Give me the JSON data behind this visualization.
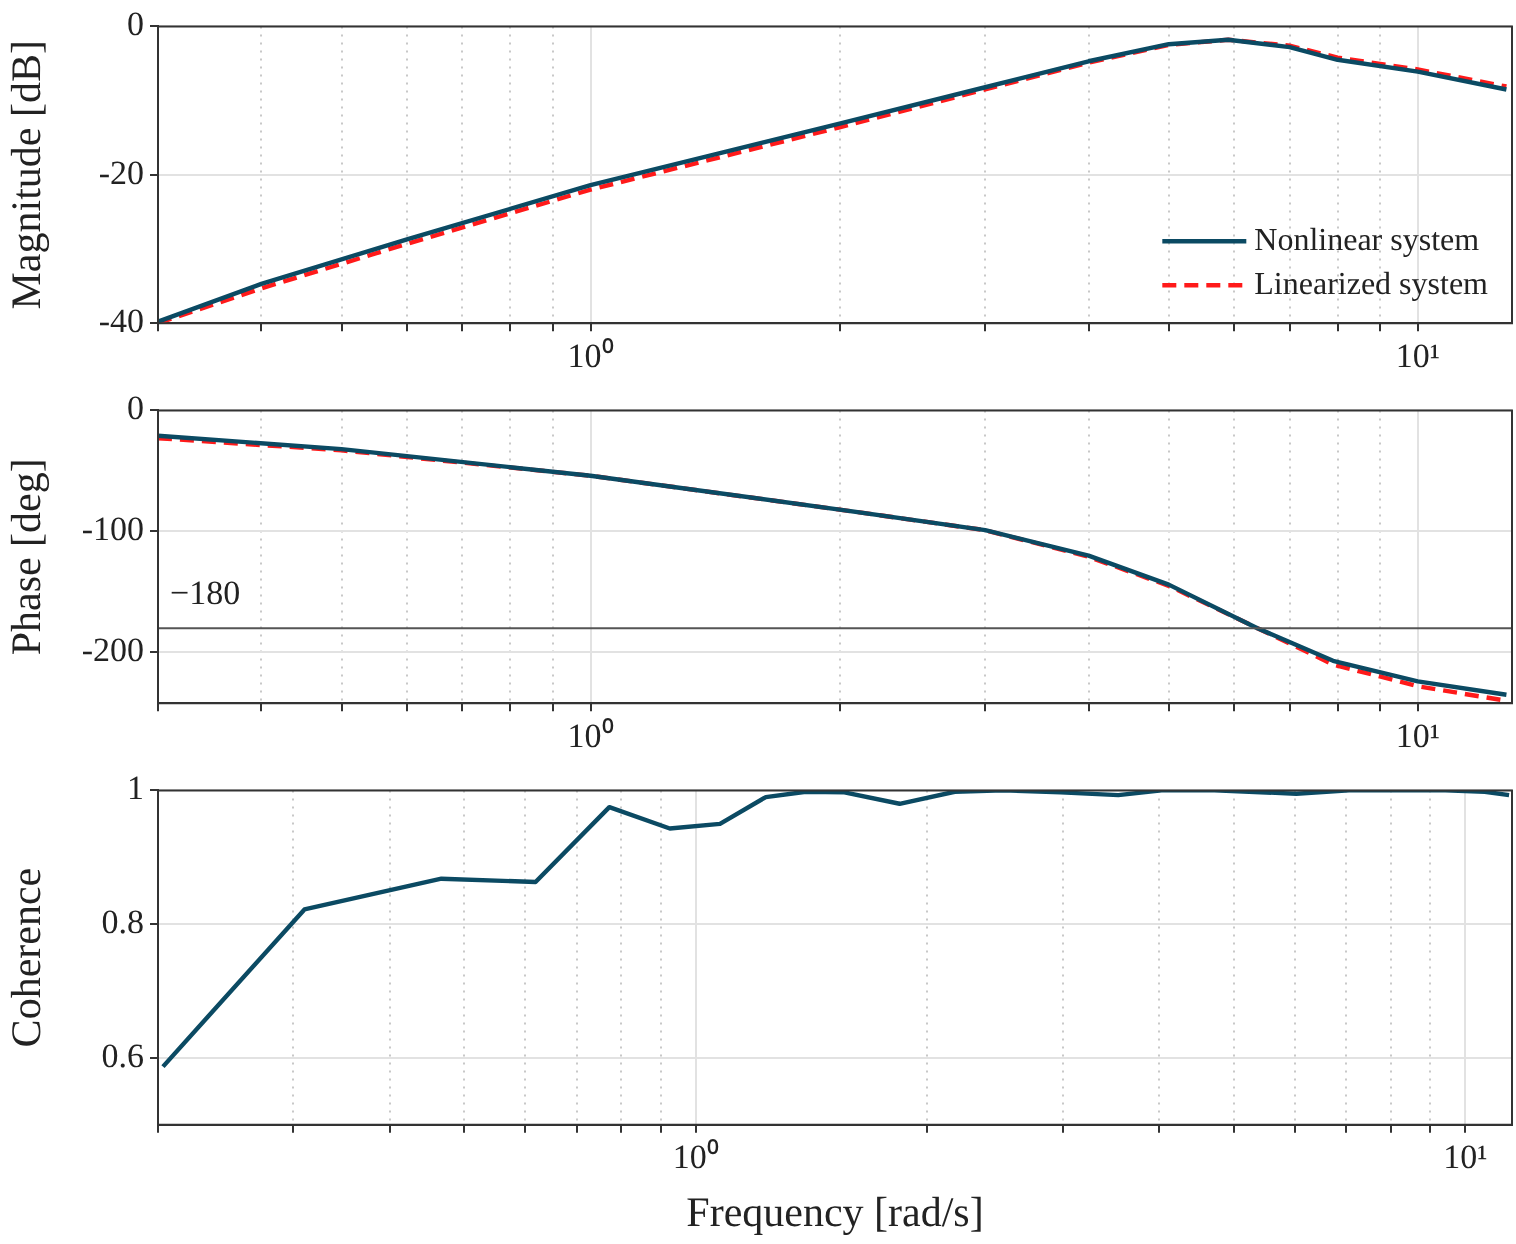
{
  "chart_data": [
    {
      "type": "line",
      "ylabel": "Magnitude [dB]",
      "log": "x",
      "grid": true,
      "legend": "bottom right",
      "x": [
        0.3,
        0.4,
        0.6,
        1,
        2,
        3,
        4,
        5,
        5.9,
        7,
        8,
        10,
        12.8
      ],
      "series": [
        {
          "name": "Nonlinear system",
          "color": "#0b4a63",
          "line_style": "solid",
          "values": [
            -39.8,
            -34.7,
            -28.7,
            -21.4,
            -13.1,
            -8.2,
            -4.7,
            -2.4,
            -1.8,
            -2.8,
            -4.5,
            -6.1,
            -8.5
          ]
        },
        {
          "name": "Linearized system",
          "color": "#ff1a1a",
          "line_style": "dashed",
          "values": [
            -40,
            -35.3,
            -29.3,
            -22,
            -13.6,
            -8.5,
            -4.9,
            -2.5,
            -1.8,
            -2.6,
            -4.2,
            -5.8,
            -8.1
          ]
        }
      ],
      "xlim": [
        0.3,
        13
      ],
      "xticks": [
        {
          "value": 0.3,
          "label": null
        },
        {
          "value": 0.4,
          "label": null
        },
        {
          "value": 0.5,
          "label": null
        },
        {
          "value": 0.6,
          "label": null
        },
        {
          "value": 0.7,
          "label": null
        },
        {
          "value": 0.8,
          "label": null
        },
        {
          "value": 0.9,
          "label": null
        },
        {
          "value": 1,
          "label": "10⁰"
        },
        {
          "value": 2,
          "label": null
        },
        {
          "value": 3,
          "label": null
        },
        {
          "value": 4,
          "label": null
        },
        {
          "value": 5,
          "label": null
        },
        {
          "value": 6,
          "label": null
        },
        {
          "value": 7,
          "label": null
        },
        {
          "value": 8,
          "label": null
        },
        {
          "value": 9,
          "label": null
        },
        {
          "value": 10,
          "label": "10¹"
        }
      ],
      "ylim": [
        -40,
        0
      ],
      "yticks": [
        -40,
        -20,
        0
      ]
    },
    {
      "type": "line",
      "ylabel": "Phase [deg]",
      "log": "x",
      "grid": true,
      "x": [
        0.3,
        0.5,
        1,
        2,
        3,
        4,
        5,
        6.4,
        7.9,
        10,
        12.8
      ],
      "series": [
        {
          "color": "#0b4a63",
          "line_style": "solid",
          "values": [
            -21,
            -32,
            -54,
            -82,
            -99,
            -120,
            -144,
            -180,
            -207,
            -224,
            -235
          ]
        },
        {
          "color": "#ff1a1a",
          "line_style": "dashed",
          "values": [
            -23,
            -33,
            -54,
            -82,
            -99,
            -121,
            -145,
            -180,
            -210,
            -228,
            -240
          ]
        }
      ],
      "ref_lines": [
        {
          "axis": "y",
          "value": -180,
          "label": "−180",
          "color": "#555555"
        }
      ],
      "xlim": [
        0.3,
        13
      ],
      "xticks": [
        {
          "value": 0.3,
          "label": null
        },
        {
          "value": 0.4,
          "label": null
        },
        {
          "value": 0.5,
          "label": null
        },
        {
          "value": 0.6,
          "label": null
        },
        {
          "value": 0.7,
          "label": null
        },
        {
          "value": 0.8,
          "label": null
        },
        {
          "value": 0.9,
          "label": null
        },
        {
          "value": 1,
          "label": "10⁰"
        },
        {
          "value": 2,
          "label": null
        },
        {
          "value": 3,
          "label": null
        },
        {
          "value": 4,
          "label": null
        },
        {
          "value": 5,
          "label": null
        },
        {
          "value": 6,
          "label": null
        },
        {
          "value": 7,
          "label": null
        },
        {
          "value": 8,
          "label": null
        },
        {
          "value": 9,
          "label": null
        },
        {
          "value": 10,
          "label": "10¹"
        }
      ],
      "ylim": [
        -242,
        0
      ],
      "yticks": [
        -200,
        -100,
        0
      ]
    },
    {
      "type": "line",
      "xlabel": "Frequency [rad/s]",
      "ylabel": "Coherence",
      "log": "x",
      "grid": true,
      "x": [
        0.203,
        0.31,
        0.467,
        0.619,
        0.772,
        0.925,
        1.075,
        1.233,
        1.39,
        1.56,
        1.84,
        2.17,
        2.51,
        2.98,
        3.54,
        4.03,
        4.72,
        6.03,
        7.06,
        9.42,
        10.6,
        11.4
      ],
      "series": [
        {
          "color": "#0b4a63",
          "line_style": "solid",
          "values": [
            0.587,
            0.822,
            0.868,
            0.863,
            0.975,
            0.943,
            0.95,
            0.99,
            0.998,
            0.997,
            0.98,
            0.998,
            1,
            0.997,
            0.993,
            1,
            1,
            0.995,
            1,
            1,
            0.998,
            0.993
          ]
        }
      ],
      "xlim": [
        0.2,
        11.5
      ],
      "xticks": [
        {
          "value": 0.2,
          "label": null
        },
        {
          "value": 0.3,
          "label": null
        },
        {
          "value": 0.4,
          "label": null
        },
        {
          "value": 0.5,
          "label": null
        },
        {
          "value": 0.6,
          "label": null
        },
        {
          "value": 0.7,
          "label": null
        },
        {
          "value": 0.8,
          "label": null
        },
        {
          "value": 0.9,
          "label": null
        },
        {
          "value": 1,
          "label": "10⁰"
        },
        {
          "value": 2,
          "label": null
        },
        {
          "value": 3,
          "label": null
        },
        {
          "value": 4,
          "label": null
        },
        {
          "value": 5,
          "label": null
        },
        {
          "value": 6,
          "label": null
        },
        {
          "value": 7,
          "label": null
        },
        {
          "value": 8,
          "label": null
        },
        {
          "value": 9,
          "label": null
        },
        {
          "value": 10,
          "label": "10¹"
        }
      ],
      "ylim": [
        0.5,
        1
      ],
      "yticks": [
        0.6,
        0.8,
        1
      ]
    }
  ]
}
